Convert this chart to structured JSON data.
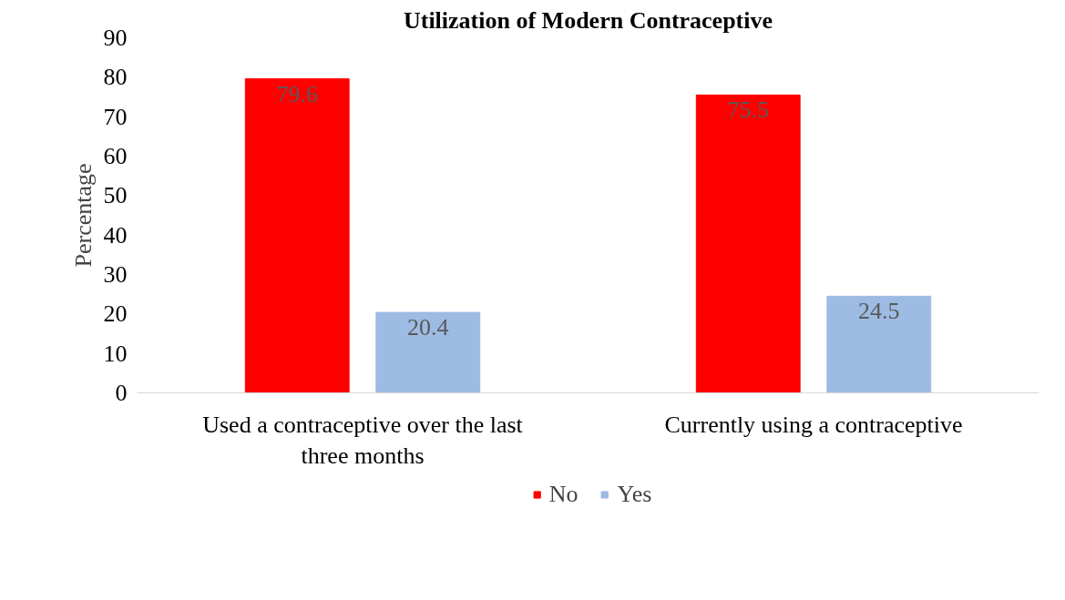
{
  "chart_data": {
    "type": "bar",
    "title": "Utilization of Modern Contraceptive",
    "ylabel": "Percentage",
    "categories": [
      "Used a contraceptive over the last three months",
      "Currently using a contraceptive"
    ],
    "series": [
      {
        "name": "No",
        "color": "#ff0000",
        "values": [
          79.6,
          75.5
        ]
      },
      {
        "name": "Yes",
        "color": "#9dbbe3",
        "values": [
          20.4,
          24.5
        ]
      }
    ],
    "ylim": [
      0,
      90
    ],
    "yticks": [
      0,
      10,
      20,
      30,
      40,
      50,
      60,
      70,
      80,
      90
    ],
    "grid": false,
    "legend": "bottom",
    "data_labels": true
  }
}
